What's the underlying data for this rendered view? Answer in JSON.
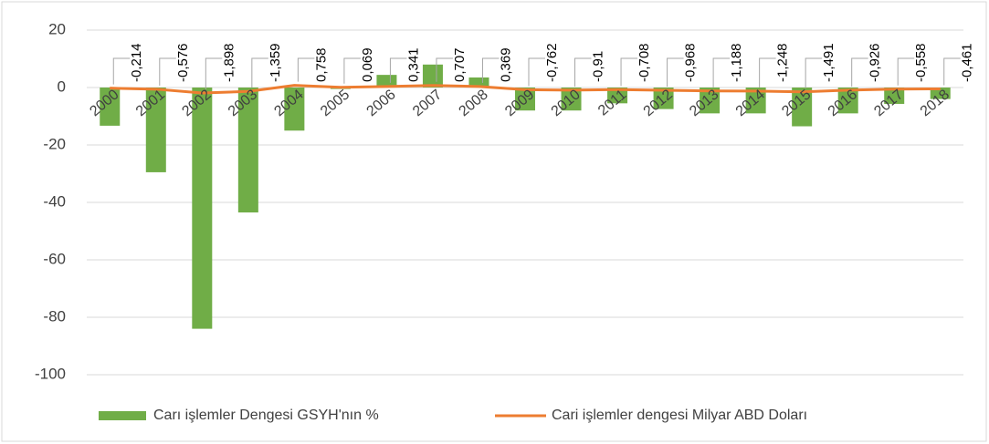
{
  "chart_data": {
    "type": "bar_line",
    "categories": [
      "2000",
      "2001",
      "2002",
      "2003",
      "2004",
      "2005",
      "2006",
      "2007",
      "2008",
      "2009",
      "2010",
      "2011",
      "2012",
      "2013",
      "2014",
      "2015",
      "2016",
      "2017",
      "2018"
    ],
    "series": [
      {
        "name": "Carı işlemler Dengesi GSYH'nın %",
        "type": "bar",
        "color": "#70ad47",
        "values": [
          -13.3,
          -29.5,
          -84,
          -43.5,
          -15,
          -0.5,
          4.4,
          8,
          3.5,
          -8,
          -8,
          -5.5,
          -7.5,
          -9,
          -9,
          -13.5,
          -9,
          -5.7,
          -4
        ]
      },
      {
        "name": "Cari işlemler dengesi Milyar ABD Doları",
        "type": "line",
        "color": "#ed7d31",
        "values": [
          -0.214,
          -0.576,
          -1.898,
          -1.359,
          0.758,
          0.069,
          0.341,
          0.707,
          0.369,
          -0.762,
          -0.91,
          -0.708,
          -0.968,
          -1.188,
          -1.248,
          -1.491,
          -0.926,
          -0.558,
          -0.461
        ],
        "value_labels": [
          "-0,214",
          "-0,576",
          "-1,898",
          "-1,359",
          "0,758",
          "0,069",
          "0,341",
          "0,707",
          "0,369",
          "-0,762",
          "-0,91",
          "-0,708",
          "-0,968",
          "-1,188",
          "-1,248",
          "-1,491",
          "-0,926",
          "-0,558",
          "-0,461"
        ]
      }
    ],
    "ylim": [
      -100,
      20
    ],
    "yticks": [
      -100,
      -80,
      -60,
      -40,
      -20,
      0,
      20
    ],
    "grid": true,
    "legend": "bottom"
  }
}
